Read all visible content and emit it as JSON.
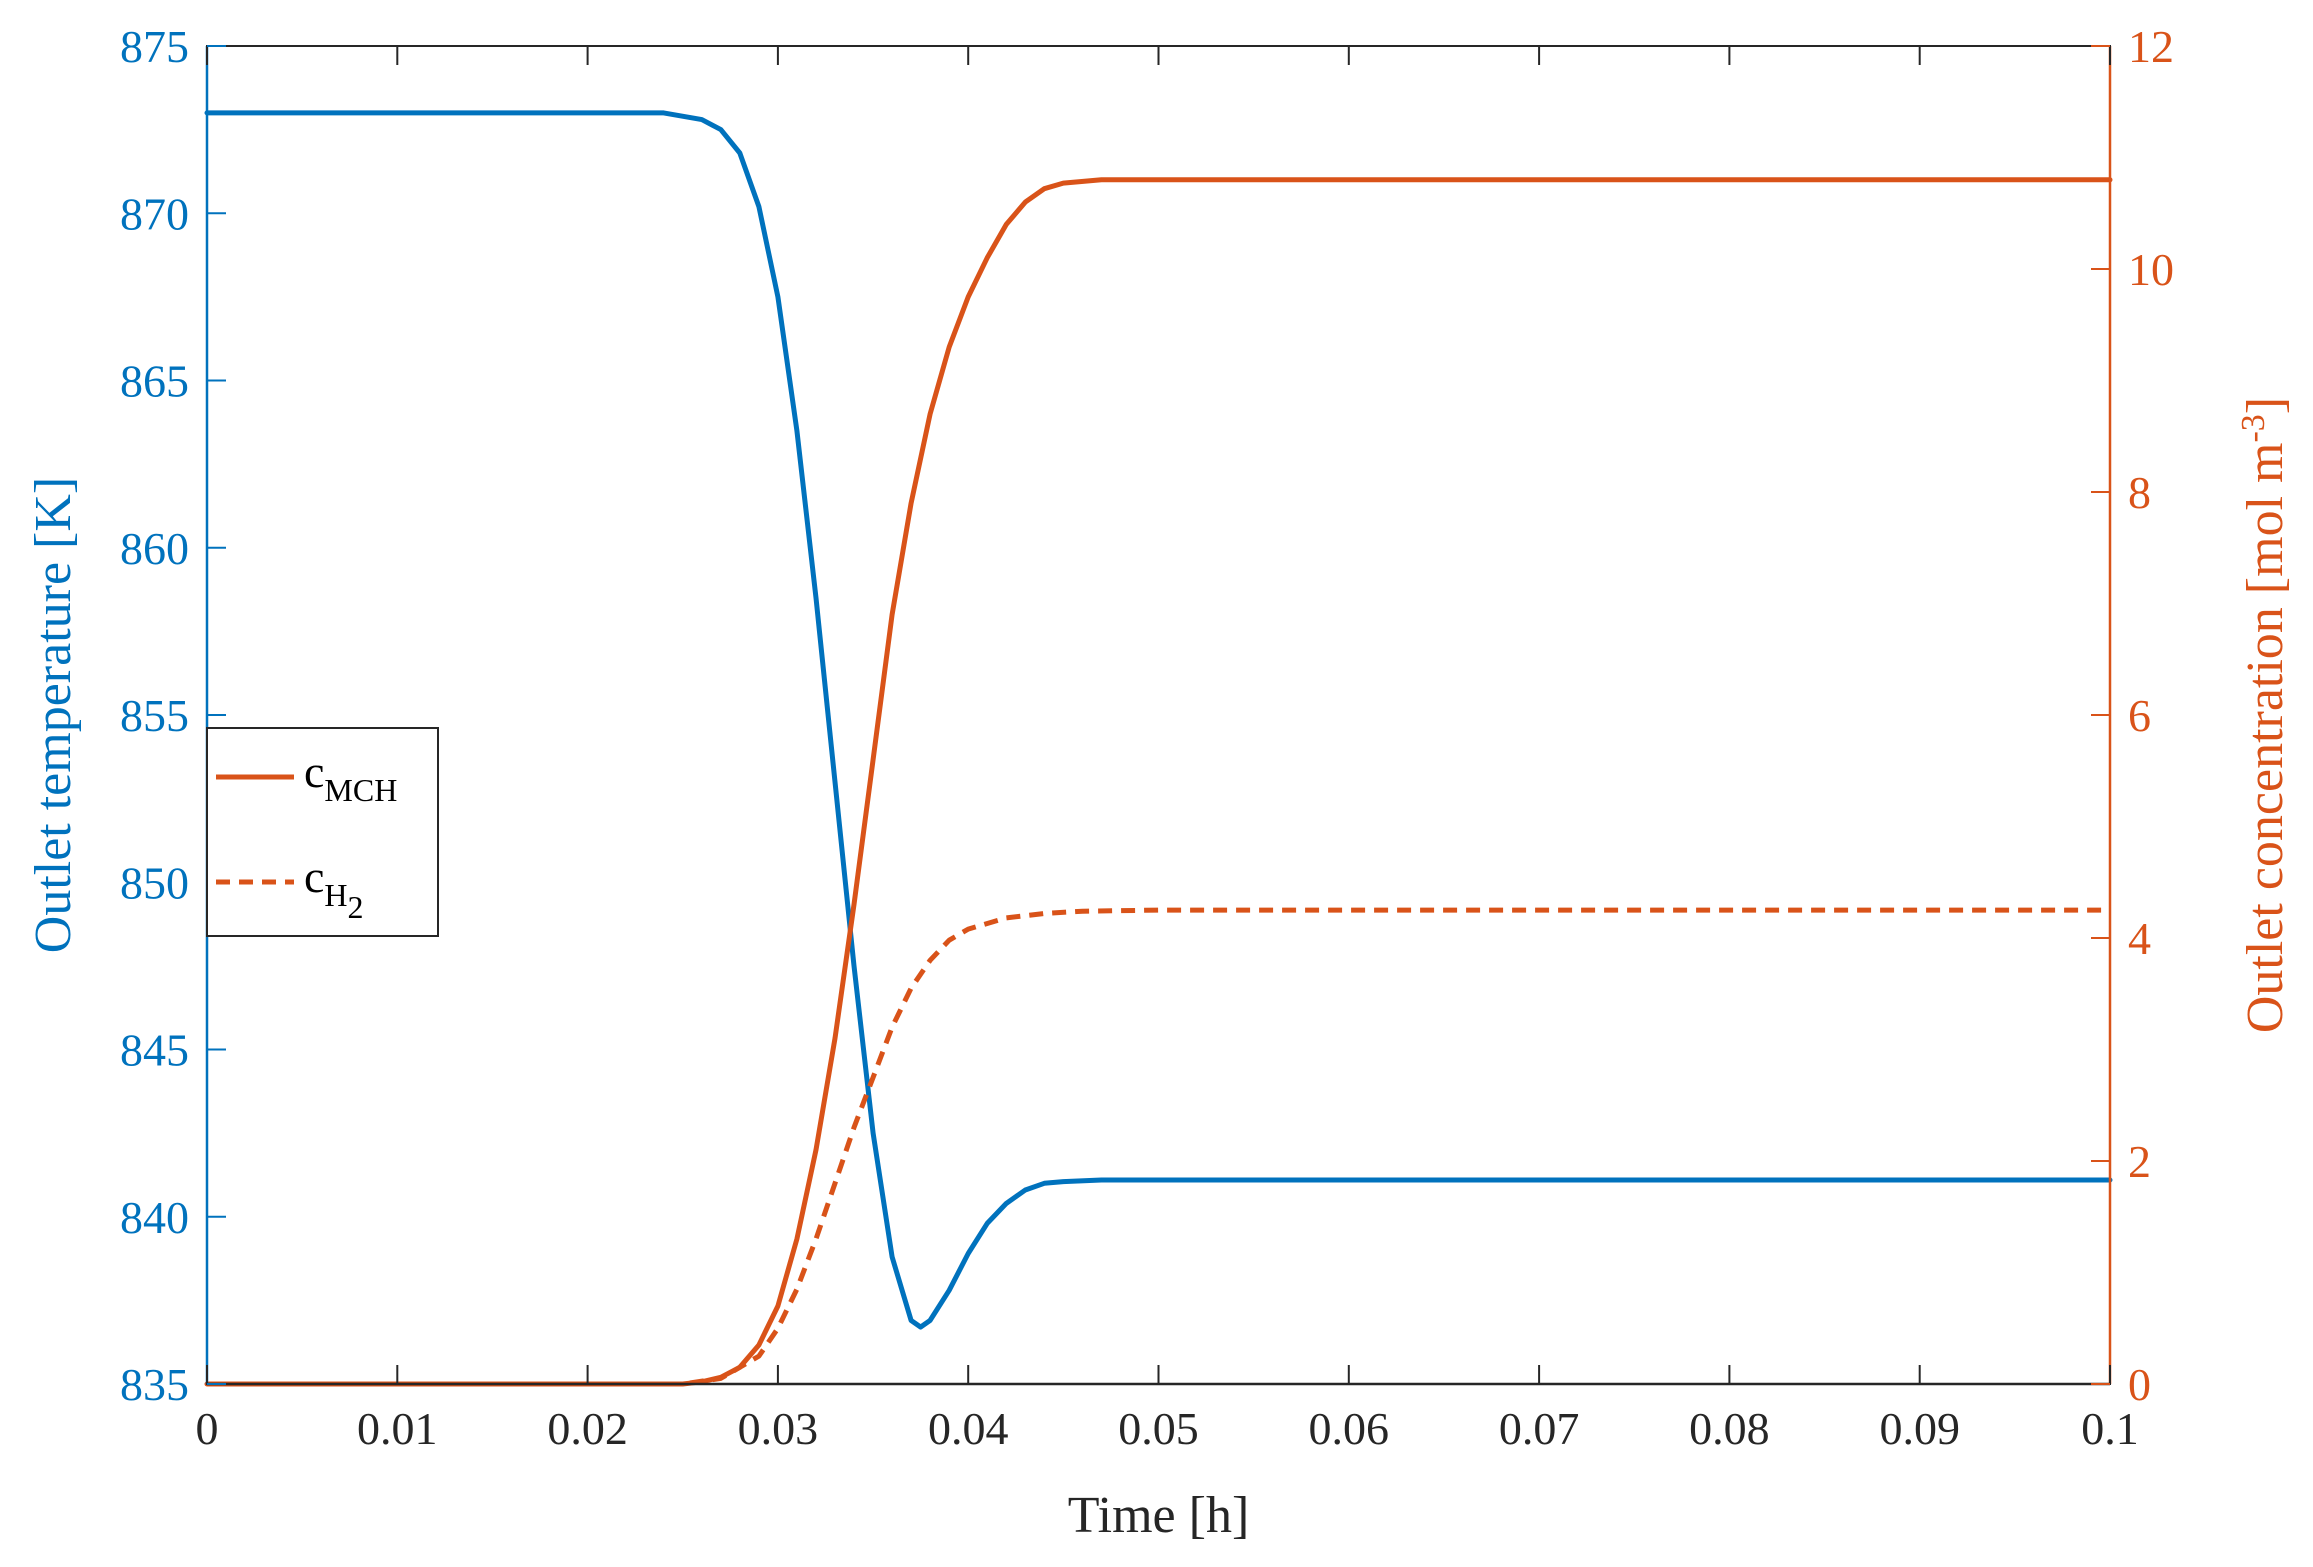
{
  "chart_data": {
    "type": "line",
    "title": "",
    "xlabel": "Time [h]",
    "ylabel_left": "Outlet temperature [K]",
    "ylabel_right_base": "Outlet concentration [mol m",
    "ylabel_right_sup": "-3",
    "ylabel_right_close": "]",
    "xlim": [
      0,
      0.1
    ],
    "ylim_left": [
      835,
      875
    ],
    "ylim_right": [
      0,
      12
    ],
    "x_ticks": [
      "0",
      "0.01",
      "0.02",
      "0.03",
      "0.04",
      "0.05",
      "0.06",
      "0.07",
      "0.08",
      "0.09",
      "0.1"
    ],
    "y_left_ticks": [
      "835",
      "840",
      "845",
      "850",
      "855",
      "860",
      "865",
      "870",
      "875"
    ],
    "y_right_ticks": [
      "0",
      "2",
      "4",
      "6",
      "8",
      "10",
      "12"
    ],
    "grid": false,
    "legend": {
      "placement": "left-middle",
      "entries": [
        {
          "base": "c",
          "sub": "MCH",
          "subsub": "",
          "style": "solid"
        },
        {
          "base": "c",
          "sub": "H",
          "subsub": "2",
          "style": "dashed"
        }
      ]
    },
    "colors": {
      "temperature": "#0072BD",
      "concentration": "#D95319"
    },
    "series": [
      {
        "axis": "left",
        "style": "solid",
        "color": "#0072BD",
        "points": [
          [
            0,
            873
          ],
          [
            0.02,
            873
          ],
          [
            0.024,
            873
          ],
          [
            0.026,
            872.8
          ],
          [
            0.027,
            872.5
          ],
          [
            0.028,
            871.8
          ],
          [
            0.029,
            870.2
          ],
          [
            0.03,
            867.5
          ],
          [
            0.031,
            863.5
          ],
          [
            0.032,
            858.5
          ],
          [
            0.033,
            853.0
          ],
          [
            0.034,
            847.5
          ],
          [
            0.035,
            842.5
          ],
          [
            0.036,
            838.8
          ],
          [
            0.037,
            836.9
          ],
          [
            0.0375,
            836.7
          ],
          [
            0.038,
            836.9
          ],
          [
            0.039,
            837.8
          ],
          [
            0.04,
            838.9
          ],
          [
            0.041,
            839.8
          ],
          [
            0.042,
            840.4
          ],
          [
            0.043,
            840.8
          ],
          [
            0.044,
            841.0
          ],
          [
            0.045,
            841.05
          ],
          [
            0.047,
            841.1
          ],
          [
            0.05,
            841.1
          ],
          [
            0.1,
            841.1
          ]
        ]
      },
      {
        "axis": "right",
        "name": "c_MCH",
        "style": "solid",
        "color": "#D95319",
        "points": [
          [
            0,
            0
          ],
          [
            0.025,
            0
          ],
          [
            0.026,
            0.02
          ],
          [
            0.027,
            0.06
          ],
          [
            0.028,
            0.15
          ],
          [
            0.029,
            0.35
          ],
          [
            0.03,
            0.7
          ],
          [
            0.031,
            1.3
          ],
          [
            0.032,
            2.1
          ],
          [
            0.033,
            3.1
          ],
          [
            0.034,
            4.3
          ],
          [
            0.035,
            5.6
          ],
          [
            0.036,
            6.9
          ],
          [
            0.037,
            7.9
          ],
          [
            0.038,
            8.7
          ],
          [
            0.039,
            9.3
          ],
          [
            0.04,
            9.75
          ],
          [
            0.041,
            10.1
          ],
          [
            0.042,
            10.4
          ],
          [
            0.043,
            10.6
          ],
          [
            0.044,
            10.72
          ],
          [
            0.045,
            10.77
          ],
          [
            0.047,
            10.8
          ],
          [
            0.05,
            10.8
          ],
          [
            0.1,
            10.8
          ]
        ]
      },
      {
        "axis": "right",
        "name": "c_H2",
        "style": "dashed",
        "color": "#D95319",
        "points": [
          [
            0,
            0
          ],
          [
            0.025,
            0
          ],
          [
            0.027,
            0.05
          ],
          [
            0.029,
            0.25
          ],
          [
            0.03,
            0.5
          ],
          [
            0.031,
            0.85
          ],
          [
            0.032,
            1.3
          ],
          [
            0.033,
            1.8
          ],
          [
            0.034,
            2.3
          ],
          [
            0.035,
            2.75
          ],
          [
            0.036,
            3.2
          ],
          [
            0.037,
            3.55
          ],
          [
            0.038,
            3.8
          ],
          [
            0.039,
            3.98
          ],
          [
            0.04,
            4.08
          ],
          [
            0.042,
            4.18
          ],
          [
            0.044,
            4.22
          ],
          [
            0.046,
            4.24
          ],
          [
            0.05,
            4.25
          ],
          [
            0.1,
            4.25
          ]
        ]
      }
    ]
  }
}
